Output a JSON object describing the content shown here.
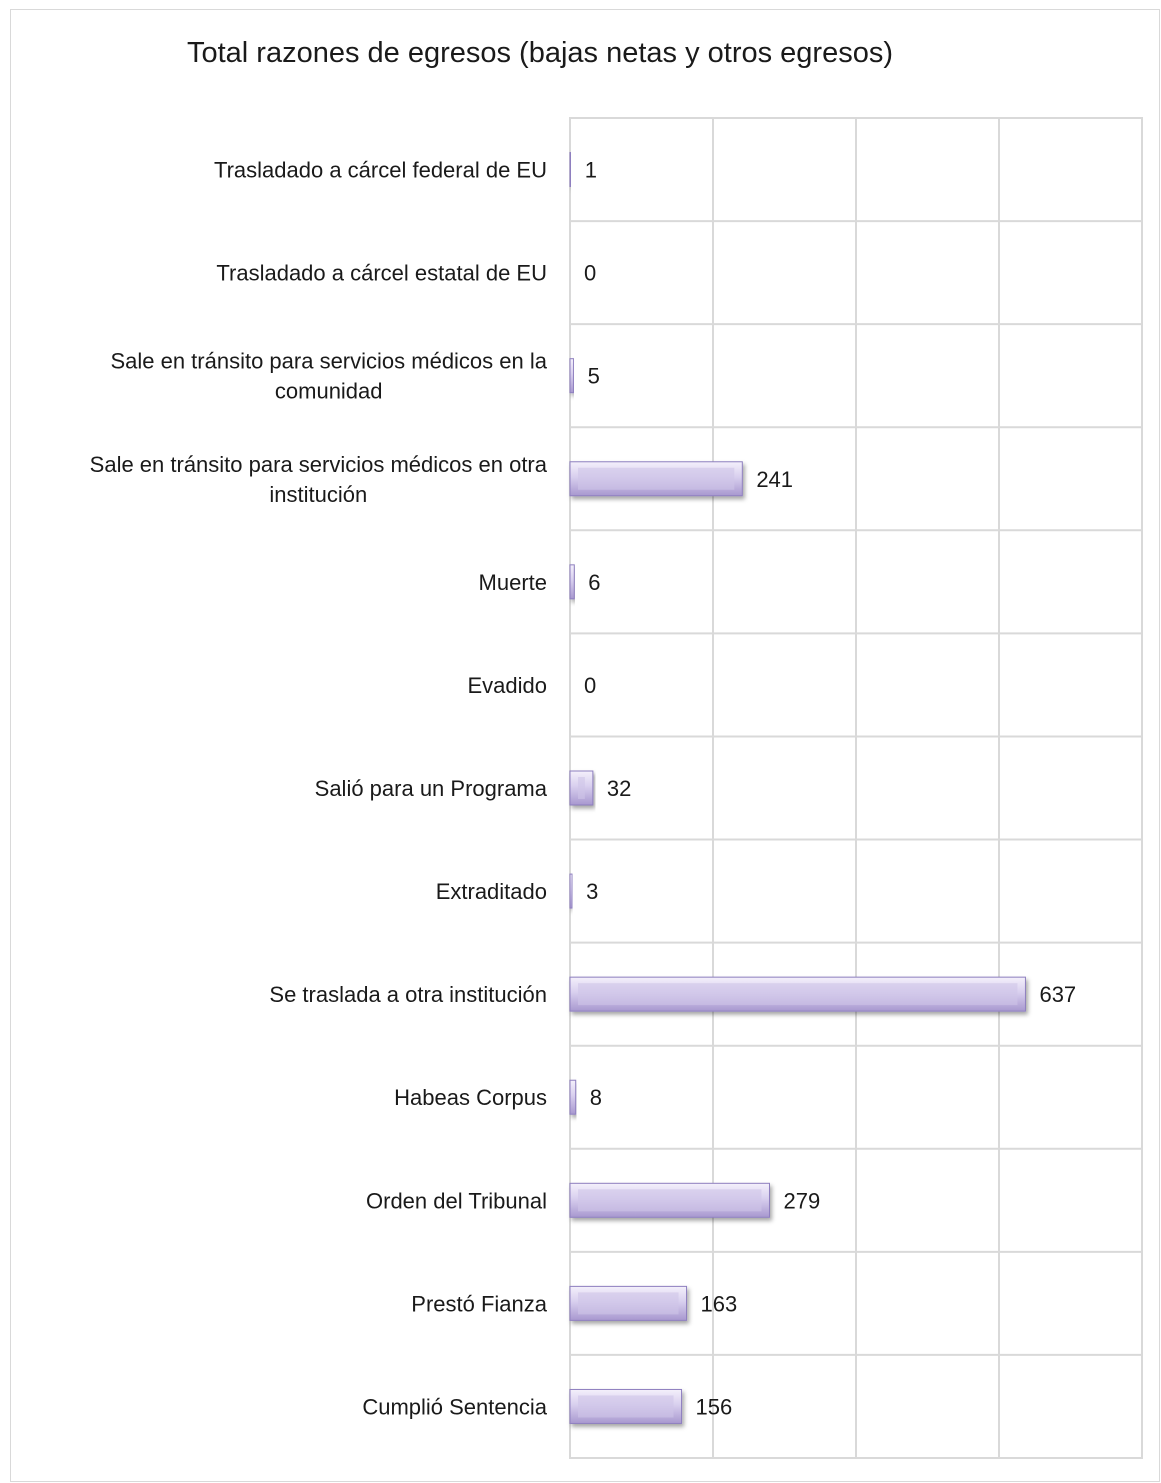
{
  "chart_data": {
    "type": "bar",
    "orientation": "horizontal",
    "title": "Total razones de egresos (bajas netas y otros egresos)",
    "categories": [
      "Trasladado a cárcel federal de EU",
      "Trasladado a cárcel estatal de EU",
      "Sale en tránsito para servicios médicos en la comunidad",
      "Sale en tránsito para servicios médicos en otra institución",
      "Muerte",
      "Evadido",
      "Salió para un Programa",
      "Extraditado",
      "Se traslada a otra institución",
      "Habeas Corpus",
      "Orden del Tribunal",
      "Prestó Fianza",
      "Cumplió Sentencia"
    ],
    "values": [
      1,
      0,
      5,
      241,
      6,
      0,
      32,
      3,
      637,
      8,
      279,
      163,
      156
    ],
    "xlim": [
      0,
      800
    ],
    "grid": true,
    "legend": "none",
    "bar_color": "#b4a7d6"
  }
}
